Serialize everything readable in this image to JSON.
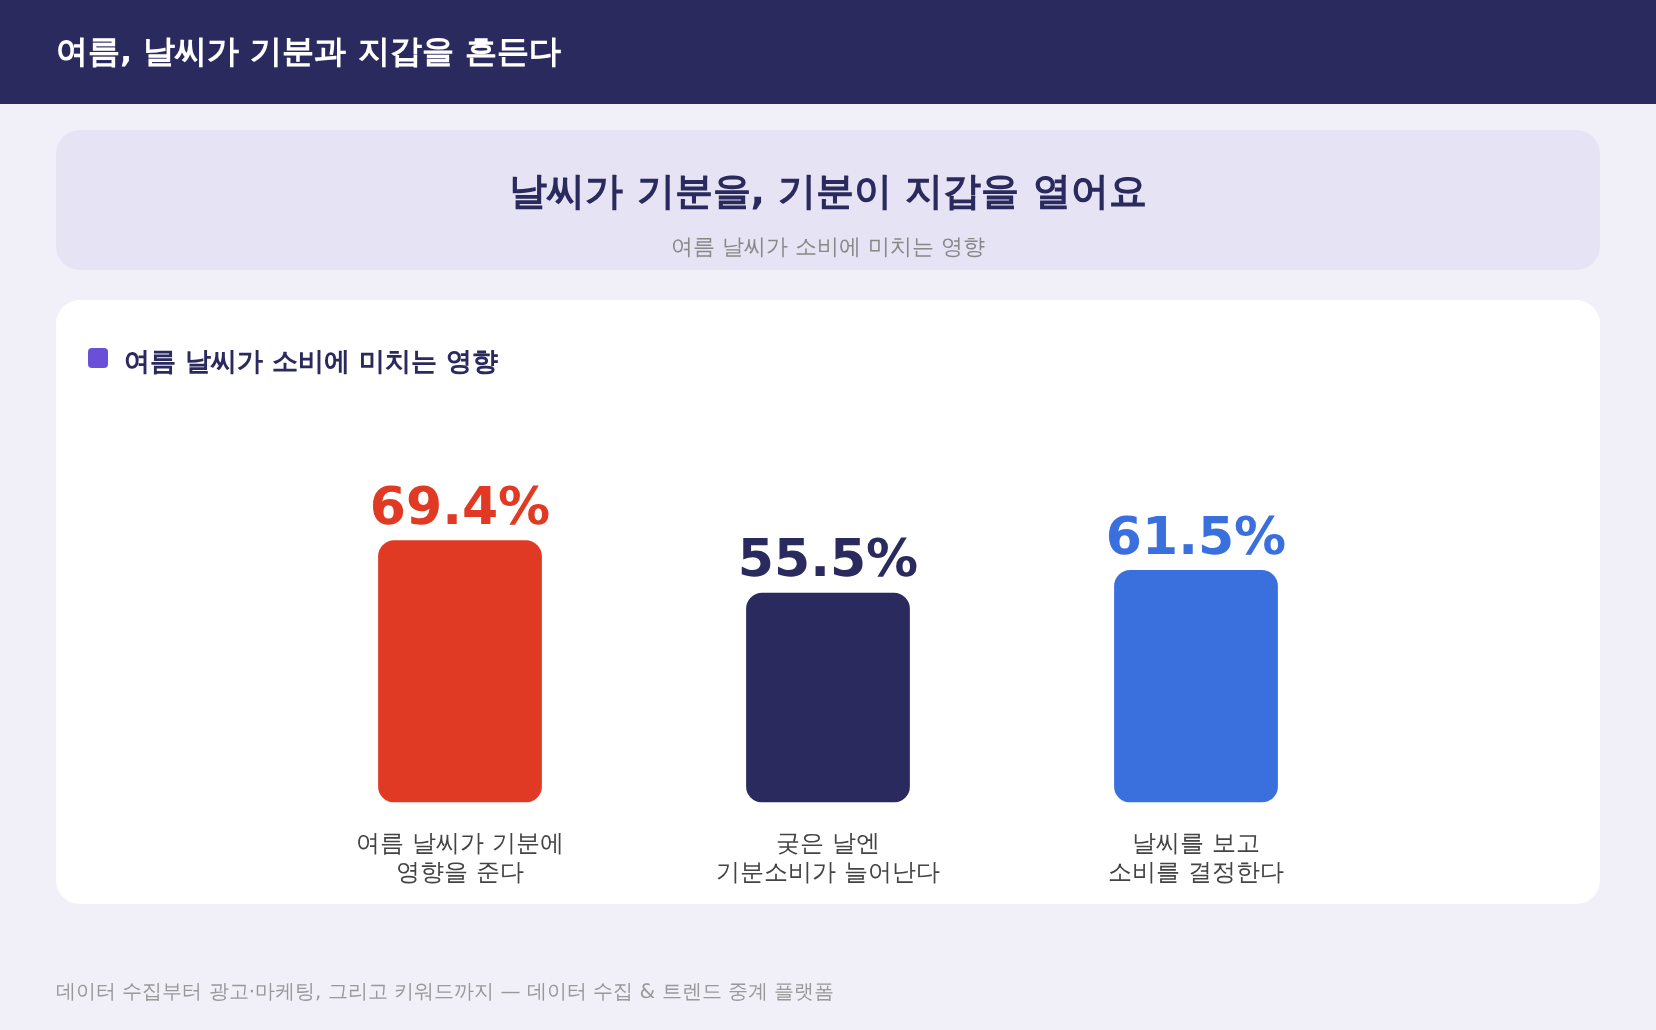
{
  "chart_data": {
    "type": "bar",
    "title": "여름, 날씨가 기분과 지갑을 흔든다",
    "subtitle": "날씨가 기분을, 기분이 지갑을 열어요",
    "annotations": [
      "여름 날씨가 소비에 미치는 영향",
      "여름 날씨가 소비에 미치는 영향",
      "데이터 수집부터 광고·마케팅, 그리고 키워드까지 — 데이터 수집 & 트렌드 중계 플랫폼"
    ],
    "categories": [
      "여름 날씨가 기분에\n영향을 준다",
      "궂은 날엔\n기분소비가 늘어난다",
      "날씨를 보고\n소비를 결정한다"
    ],
    "values": [
      69.4,
      55.5,
      61.5
    ],
    "colors": [
      "#e03a24",
      "#2b2a5e",
      "#3a6fde"
    ],
    "value_labels": [
      "69.4%",
      "55.5%",
      "61.5%"
    ],
    "legend": false,
    "grid": false
  }
}
